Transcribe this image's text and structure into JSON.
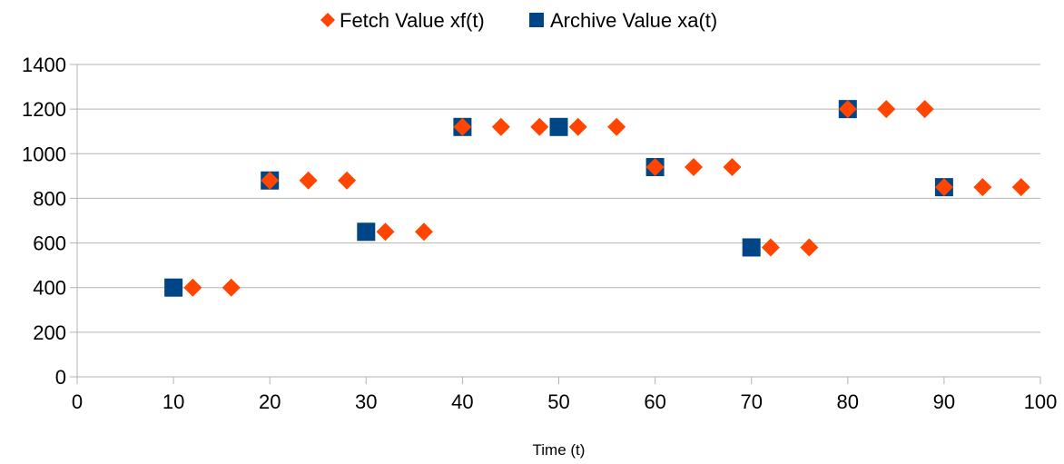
{
  "chart_data": {
    "type": "scatter",
    "title": "",
    "xlabel": "Time (t)",
    "ylabel": "",
    "xlim": [
      0,
      100
    ],
    "ylim": [
      0,
      1400
    ],
    "x_ticks": [
      0,
      10,
      20,
      30,
      40,
      50,
      60,
      70,
      80,
      90,
      100
    ],
    "y_ticks": [
      0,
      200,
      400,
      600,
      800,
      1000,
      1200,
      1400
    ],
    "grid": "horizontal",
    "legend_position": "top-center",
    "series": [
      {
        "name": "Fetch Value xf(t)",
        "marker": "diamond",
        "color": "#ff4500",
        "points": [
          {
            "x": 12,
            "y": 400
          },
          {
            "x": 16,
            "y": 400
          },
          {
            "x": 20,
            "y": 880
          },
          {
            "x": 24,
            "y": 880
          },
          {
            "x": 28,
            "y": 880
          },
          {
            "x": 32,
            "y": 650
          },
          {
            "x": 36,
            "y": 650
          },
          {
            "x": 40,
            "y": 1120
          },
          {
            "x": 44,
            "y": 1120
          },
          {
            "x": 48,
            "y": 1120
          },
          {
            "x": 52,
            "y": 1120
          },
          {
            "x": 56,
            "y": 1120
          },
          {
            "x": 60,
            "y": 940
          },
          {
            "x": 64,
            "y": 940
          },
          {
            "x": 68,
            "y": 940
          },
          {
            "x": 72,
            "y": 580
          },
          {
            "x": 76,
            "y": 580
          },
          {
            "x": 80,
            "y": 1200
          },
          {
            "x": 84,
            "y": 1200
          },
          {
            "x": 88,
            "y": 1200
          },
          {
            "x": 90,
            "y": 850
          },
          {
            "x": 94,
            "y": 850
          },
          {
            "x": 98,
            "y": 850
          }
        ]
      },
      {
        "name": "Archive Value xa(t)",
        "marker": "square",
        "color": "#004586",
        "points": [
          {
            "x": 10,
            "y": 400
          },
          {
            "x": 20,
            "y": 880
          },
          {
            "x": 30,
            "y": 650
          },
          {
            "x": 40,
            "y": 1120
          },
          {
            "x": 50,
            "y": 1120
          },
          {
            "x": 60,
            "y": 940
          },
          {
            "x": 70,
            "y": 580
          },
          {
            "x": 80,
            "y": 1200
          },
          {
            "x": 90,
            "y": 850
          }
        ]
      }
    ],
    "colors": {
      "gridline": "#b3b3b3",
      "axis": "#b3b3b3"
    }
  }
}
